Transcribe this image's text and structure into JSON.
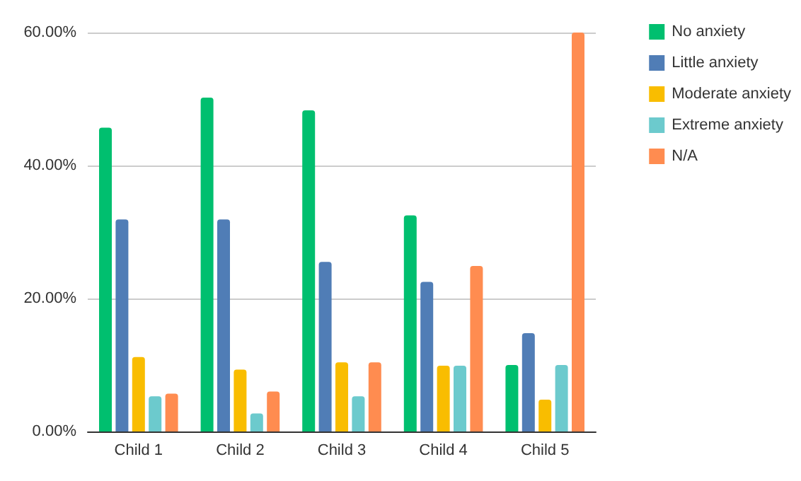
{
  "chart_data": {
    "type": "bar",
    "categories": [
      "Child 1",
      "Child 2",
      "Child 3",
      "Child 4",
      "Child 5"
    ],
    "series": [
      {
        "name": "No anxiety",
        "color": "#00bf6f",
        "values": [
          45.7,
          50.2,
          48.3,
          32.5,
          10
        ]
      },
      {
        "name": "Little anxiety",
        "color": "#507db6",
        "values": [
          31.9,
          31.9,
          25.5,
          22.5,
          14.8
        ]
      },
      {
        "name": "Moderate anxiety",
        "color": "#f9bd00",
        "values": [
          11.2,
          9.3,
          10.4,
          9.9,
          4.8
        ]
      },
      {
        "name": "Extreme anxiety",
        "color": "#6ccacd",
        "values": [
          5.3,
          2.7,
          5.3,
          9.9,
          10
        ]
      },
      {
        "name": "N/A",
        "color": "#ff8c50",
        "values": [
          5.7,
          6,
          10.4,
          24.9,
          60
        ]
      }
    ],
    "ylim": [
      0,
      60
    ],
    "yticks": [
      {
        "value": 0,
        "label": "0.00%"
      },
      {
        "value": 20,
        "label": "20.00%"
      },
      {
        "value": 40,
        "label": "40.00%"
      },
      {
        "value": 60,
        "label": "60.00%"
      }
    ],
    "grid": "y",
    "legend": "top right"
  }
}
